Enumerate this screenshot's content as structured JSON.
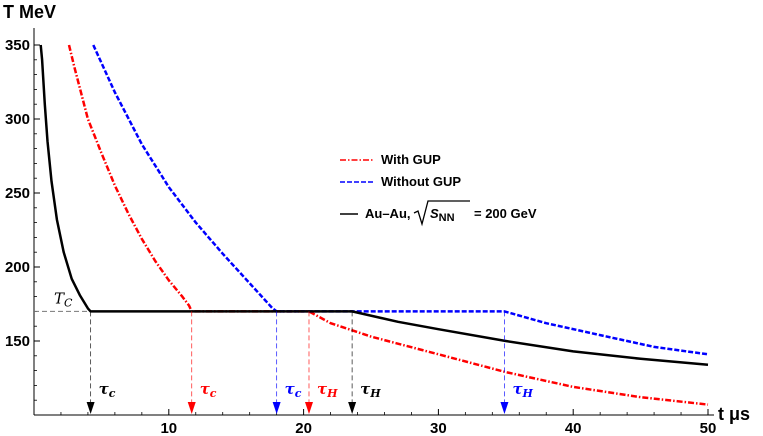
{
  "chart_data": {
    "type": "line",
    "title": "",
    "ylabel": "T MeV",
    "xlabel": "t μs",
    "xlim": [
      0,
      50
    ],
    "ylim": [
      100,
      355
    ],
    "x_ticks": [
      10,
      20,
      30,
      40,
      50
    ],
    "x_tick_labels": [
      "10",
      "20",
      "30",
      "40",
      "50"
    ],
    "y_ticks": [
      150,
      200,
      250,
      300,
      350
    ],
    "y_tick_labels": [
      "150",
      "200",
      "250",
      "300",
      "350"
    ],
    "grid": false,
    "legend_position": "right",
    "critical_temperature": {
      "label": "T",
      "label_sub": "C",
      "value": 170
    },
    "series": [
      {
        "name": "With GUP",
        "color": "#ff0000",
        "style": "dash-dot",
        "points": [
          [
            2.6,
            350
          ],
          [
            3.0,
            335
          ],
          [
            4.0,
            300
          ],
          [
            5.0,
            277
          ],
          [
            6.0,
            255
          ],
          [
            7.0,
            236
          ],
          [
            8.0,
            219
          ],
          [
            9.0,
            204
          ],
          [
            10.0,
            191
          ],
          [
            11.0,
            180
          ],
          [
            11.5,
            174
          ],
          [
            11.7,
            170
          ],
          [
            20.4,
            170
          ],
          [
            22,
            162
          ],
          [
            25,
            153
          ],
          [
            30,
            141
          ],
          [
            35,
            129
          ],
          [
            40,
            119
          ],
          [
            45,
            112
          ],
          [
            50,
            107
          ]
        ]
      },
      {
        "name": "Without GUP",
        "color": "#0000ff",
        "style": "dashed",
        "points": [
          [
            4.4,
            350
          ],
          [
            5.0,
            338
          ],
          [
            6.0,
            318
          ],
          [
            8.0,
            283
          ],
          [
            10.0,
            254
          ],
          [
            12.0,
            230
          ],
          [
            14.0,
            209
          ],
          [
            16.0,
            189
          ],
          [
            17.0,
            179
          ],
          [
            17.7,
            172
          ],
          [
            18.0,
            170
          ],
          [
            34.9,
            170
          ],
          [
            38,
            162
          ],
          [
            42,
            154
          ],
          [
            46,
            146
          ],
          [
            50,
            141
          ]
        ]
      },
      {
        "name": "Au–Au, √S_NN = 200 GeV",
        "color": "#000000",
        "style": "solid",
        "points": [
          [
            0.5,
            350
          ],
          [
            0.6,
            340
          ],
          [
            0.8,
            310
          ],
          [
            1.0,
            285
          ],
          [
            1.3,
            258
          ],
          [
            1.7,
            232
          ],
          [
            2.2,
            210
          ],
          [
            2.8,
            192
          ],
          [
            3.4,
            181
          ],
          [
            4.0,
            172
          ],
          [
            4.2,
            170
          ],
          [
            23.6,
            170
          ],
          [
            27,
            163
          ],
          [
            30,
            158
          ],
          [
            35,
            150
          ],
          [
            40,
            143
          ],
          [
            45,
            138
          ],
          [
            50,
            134
          ]
        ]
      }
    ],
    "legend": {
      "with_gup": "With GUP",
      "without_gup": "Without GUP",
      "auau_prefix": "Au–Au,",
      "auau_s": "S",
      "auau_s_sub": "NN",
      "auau_suffix": "= 200 GeV"
    },
    "markers": [
      {
        "x": 4.2,
        "color": "#000000",
        "label": "τ",
        "sub": "c"
      },
      {
        "x": 11.7,
        "color": "#ff0000",
        "label": "τ",
        "sub": "c"
      },
      {
        "x": 18.0,
        "color": "#0000ff",
        "label": "τ",
        "sub": "c"
      },
      {
        "x": 20.4,
        "color": "#ff0000",
        "label": "τ",
        "sub": "H"
      },
      {
        "x": 23.6,
        "color": "#000000",
        "label": "τ",
        "sub": "H"
      },
      {
        "x": 34.9,
        "color": "#0000ff",
        "label": "τ",
        "sub": "H"
      }
    ]
  }
}
